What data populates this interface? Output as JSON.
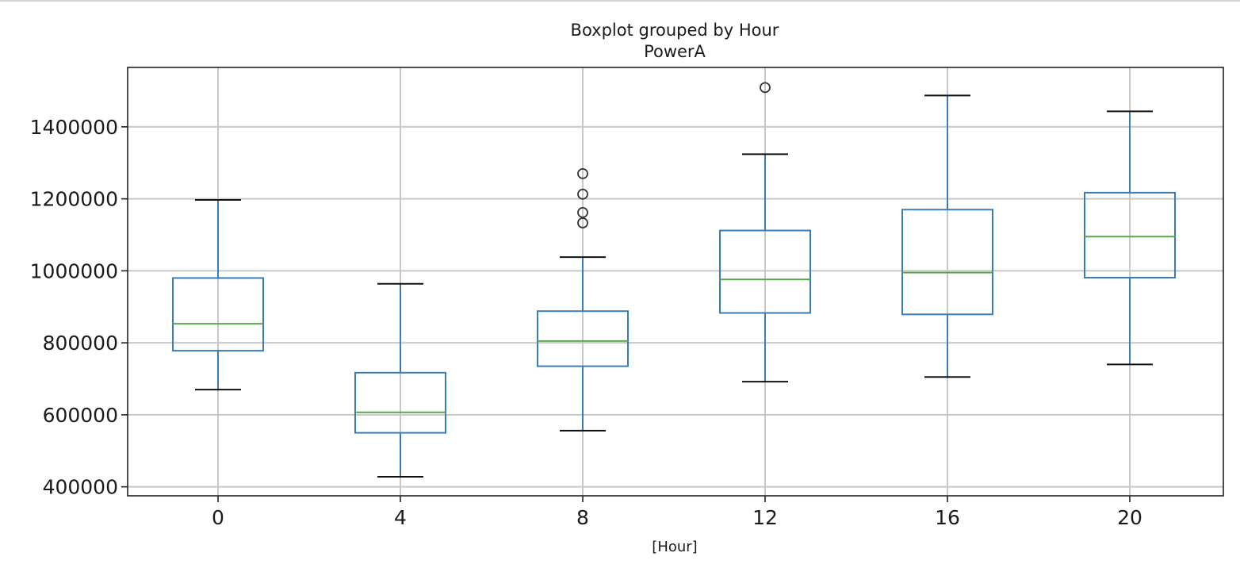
{
  "chart_data": {
    "type": "box",
    "title": "Boxplot grouped by Hour",
    "subtitle": "PowerA",
    "xlabel": "[Hour]",
    "ylabel": "",
    "categories": [
      "0",
      "4",
      "8",
      "12",
      "16",
      "20"
    ],
    "boxes": [
      {
        "category": "0",
        "whisker_low": 670000,
        "q1": 778000,
        "median": 853000,
        "q3": 980000,
        "whisker_high": 1197000,
        "outliers": []
      },
      {
        "category": "4",
        "whisker_low": 428000,
        "q1": 550000,
        "median": 607000,
        "q3": 717000,
        "whisker_high": 964000,
        "outliers": []
      },
      {
        "category": "8",
        "whisker_low": 556000,
        "q1": 735000,
        "median": 805000,
        "q3": 888000,
        "whisker_high": 1038000,
        "outliers": [
          1133000,
          1162000,
          1213000,
          1270000
        ]
      },
      {
        "category": "12",
        "whisker_low": 692000,
        "q1": 883000,
        "median": 976000,
        "q3": 1112000,
        "whisker_high": 1324000,
        "outliers": [
          1509000
        ]
      },
      {
        "category": "16",
        "whisker_low": 705000,
        "q1": 879000,
        "median": 995000,
        "q3": 1170000,
        "whisker_high": 1487000,
        "outliers": []
      },
      {
        "category": "20",
        "whisker_low": 740000,
        "q1": 981000,
        "median": 1095000,
        "q3": 1217000,
        "whisker_high": 1443000,
        "outliers": []
      }
    ],
    "y_ticks": [
      400000,
      600000,
      800000,
      1000000,
      1200000,
      1400000
    ],
    "y_tick_labels": [
      "400000",
      "600000",
      "800000",
      "1000000",
      "1200000",
      "1400000"
    ],
    "ylim": [
      375000,
      1565000
    ],
    "grid": true,
    "colors": {
      "box": "#3a7cb8",
      "median": "#5aa64a",
      "cap": "#111111",
      "outlier": "#333333",
      "grid": "#c8c8c8",
      "frame": "#222222"
    }
  }
}
